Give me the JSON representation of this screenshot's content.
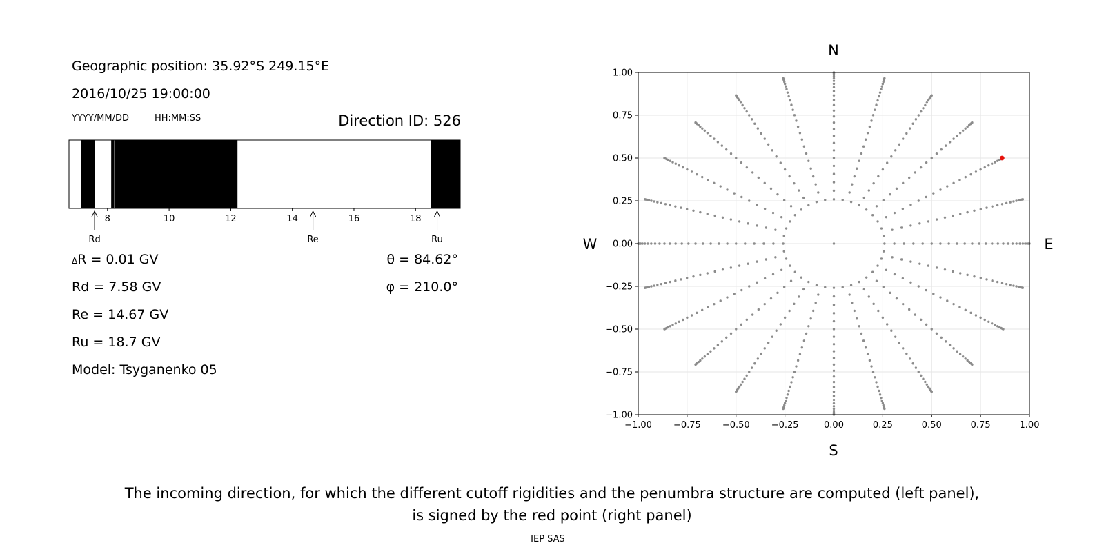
{
  "left_panel": {
    "geo_position": "Geographic position: 35.92°S 249.15°E",
    "datetime": "2016/10/25 19:00:00",
    "date_format": "YYYY/MM/DD",
    "time_format": "HH:MM:SS",
    "direction_id": "Direction ID: 526",
    "delta_r_symbol": "Δ",
    "delta_r_value": "R = 0.01 GV",
    "theta": "θ = 84.62°",
    "phi": "φ = 210.0°",
    "rd": "Rd = 7.58 GV",
    "re": "Re = 14.67 GV",
    "ru": "Ru = 18.7 GV",
    "model": "Model: Tsyganenko 05"
  },
  "caption": {
    "line1": "The incoming direction, for which the different cutoff rigidities and the penumbra structure are computed (left panel),",
    "line2": "is signed by the red point (right panel)"
  },
  "footer": "IEP SAS",
  "compass": {
    "north": "N",
    "south": "S",
    "west": "W",
    "east": "E"
  },
  "colors": {
    "forbidden": "#000000",
    "allowed": "#ffffff",
    "grid_points": "#8c8c8c",
    "selected_point": "#e8120c"
  },
  "chart_data": [
    {
      "type": "bar",
      "name": "penumbra",
      "xlim": [
        6.75,
        19.45
      ],
      "ticks": [
        8,
        10,
        12,
        14,
        16,
        18
      ],
      "tick_labels": [
        "8",
        "10",
        "12",
        "14",
        "16",
        "18"
      ],
      "forbidden_bands": [
        [
          7.15,
          7.6
        ],
        [
          8.12,
          8.22
        ],
        [
          8.25,
          12.22
        ],
        [
          18.5,
          19.45
        ]
      ],
      "markers": [
        {
          "label": "Rd",
          "value": 7.58
        },
        {
          "label": "Re",
          "value": 14.67
        },
        {
          "label": "Ru",
          "value": 18.7
        }
      ]
    },
    {
      "type": "scatter",
      "name": "direction-map",
      "xlim": [
        -1.0,
        1.0
      ],
      "ylim": [
        -1.0,
        1.0
      ],
      "grid": true,
      "xticks": [
        -1.0,
        -0.75,
        -0.5,
        -0.25,
        0.0,
        0.25,
        0.5,
        0.75,
        1.0
      ],
      "xtick_labels": [
        "−1.00",
        "−0.75",
        "−0.50",
        "−0.25",
        "0.00",
        "0.25",
        "0.50",
        "0.75",
        "1.00"
      ],
      "yticks": [
        -1.0,
        -0.75,
        -0.5,
        -0.25,
        0.0,
        0.25,
        0.5,
        0.75,
        1.0
      ],
      "ytick_labels": [
        "−1.00",
        "−0.75",
        "−0.50",
        "−0.25",
        "0.00",
        "0.25",
        "0.50",
        "0.75",
        "1.00"
      ],
      "grid_pattern": {
        "zenith_step_deg": 3,
        "zenith_start_deg": 15,
        "zenith_max_deg": 90,
        "azimuth_step_deg": 15,
        "inner_ring_zenith_deg": 15,
        "inner_ring_azimuth_step_deg": 10
      },
      "selected_point": {
        "x": 0.86,
        "y": 0.5
      }
    }
  ]
}
